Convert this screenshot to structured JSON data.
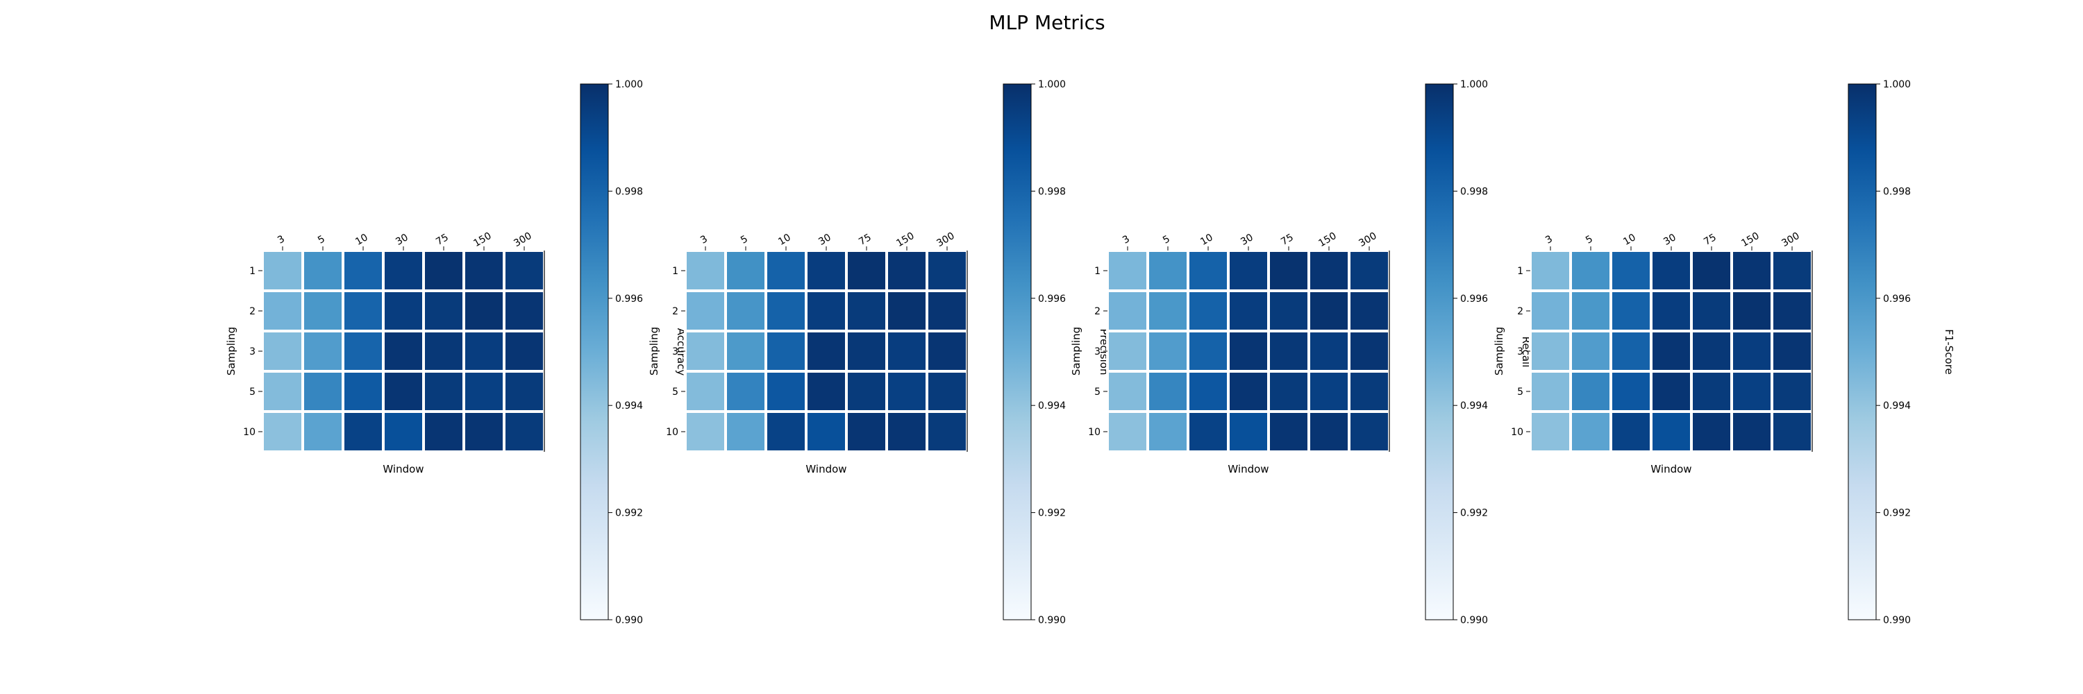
{
  "title": "MLP Metrics",
  "colormap": {
    "low": "#f7fbff",
    "high": "#08306b",
    "name": "Blues"
  },
  "chart_data": [
    {
      "type": "heatmap",
      "xlabel": "Window",
      "ylabel": "Sampling",
      "colorbar_label": "Accuracy",
      "x_categories": [
        "3",
        "5",
        "10",
        "30",
        "75",
        "150",
        "300"
      ],
      "y_categories": [
        "1",
        "2",
        "3",
        "5",
        "10"
      ],
      "clim": [
        0.99,
        1.0
      ],
      "colorbar_ticks": [
        "0.990",
        "0.992",
        "0.994",
        "0.996",
        "0.998",
        "1.000"
      ],
      "values": [
        [
          0.9945,
          0.9962,
          0.998,
          0.9995,
          0.9999,
          0.9998,
          0.9996
        ],
        [
          0.9948,
          0.996,
          0.998,
          0.9995,
          0.9996,
          0.9999,
          0.9998
        ],
        [
          0.9944,
          0.9958,
          0.998,
          0.9998,
          0.9997,
          0.9995,
          0.9998
        ],
        [
          0.9944,
          0.9967,
          0.9984,
          0.9998,
          0.9996,
          0.9994,
          0.9996
        ],
        [
          0.9942,
          0.9955,
          0.9993,
          0.9988,
          0.9998,
          0.9998,
          0.9996
        ]
      ]
    },
    {
      "type": "heatmap",
      "xlabel": "Window",
      "ylabel": "Sampling",
      "colorbar_label": "Precision",
      "x_categories": [
        "3",
        "5",
        "10",
        "30",
        "75",
        "150",
        "300"
      ],
      "y_categories": [
        "1",
        "2",
        "3",
        "5",
        "10"
      ],
      "clim": [
        0.99,
        1.0
      ],
      "colorbar_ticks": [
        "0.990",
        "0.992",
        "0.994",
        "0.996",
        "0.998",
        "1.000"
      ],
      "values": [
        [
          0.9945,
          0.9963,
          0.9981,
          0.9995,
          0.9999,
          0.9998,
          0.9996
        ],
        [
          0.9948,
          0.9961,
          0.9981,
          0.9995,
          0.9996,
          0.9999,
          0.9998
        ],
        [
          0.9944,
          0.9959,
          0.9981,
          0.9998,
          0.9997,
          0.9995,
          0.9998
        ],
        [
          0.9944,
          0.9968,
          0.9985,
          0.9998,
          0.9996,
          0.9994,
          0.9996
        ],
        [
          0.9942,
          0.9955,
          0.9993,
          0.9988,
          0.9998,
          0.9998,
          0.9996
        ]
      ]
    },
    {
      "type": "heatmap",
      "xlabel": "Window",
      "ylabel": "Sampling",
      "colorbar_label": "Recall",
      "x_categories": [
        "3",
        "5",
        "10",
        "30",
        "75",
        "150",
        "300"
      ],
      "y_categories": [
        "1",
        "2",
        "3",
        "5",
        "10"
      ],
      "clim": [
        0.99,
        1.0
      ],
      "colorbar_ticks": [
        "0.990",
        "0.992",
        "0.994",
        "0.996",
        "0.998",
        "1.000"
      ],
      "values": [
        [
          0.9946,
          0.9962,
          0.9981,
          0.9995,
          0.9999,
          0.9998,
          0.9996
        ],
        [
          0.9948,
          0.996,
          0.9981,
          0.9995,
          0.9996,
          0.9999,
          0.9998
        ],
        [
          0.9944,
          0.9958,
          0.9981,
          0.9998,
          0.9997,
          0.9995,
          0.9998
        ],
        [
          0.9944,
          0.9967,
          0.9985,
          0.9998,
          0.9996,
          0.9994,
          0.9996
        ],
        [
          0.9942,
          0.9955,
          0.9993,
          0.9988,
          0.9998,
          0.9998,
          0.9996
        ]
      ]
    },
    {
      "type": "heatmap",
      "xlabel": "Window",
      "ylabel": "Sampling",
      "colorbar_label": "F1-Score",
      "x_categories": [
        "3",
        "5",
        "10",
        "30",
        "75",
        "150",
        "300"
      ],
      "y_categories": [
        "1",
        "2",
        "3",
        "5",
        "10"
      ],
      "clim": [
        0.99,
        1.0
      ],
      "colorbar_ticks": [
        "0.990",
        "0.992",
        "0.994",
        "0.996",
        "0.998",
        "1.000"
      ],
      "values": [
        [
          0.9945,
          0.9962,
          0.9981,
          0.9995,
          0.9999,
          0.9998,
          0.9996
        ],
        [
          0.9948,
          0.996,
          0.9981,
          0.9995,
          0.9996,
          0.9999,
          0.9998
        ],
        [
          0.9944,
          0.9958,
          0.9981,
          0.9998,
          0.9997,
          0.9995,
          0.9998
        ],
        [
          0.9944,
          0.9967,
          0.9985,
          0.9998,
          0.9996,
          0.9994,
          0.9996
        ],
        [
          0.9942,
          0.9955,
          0.9993,
          0.9988,
          0.9998,
          0.9998,
          0.9996
        ]
      ]
    }
  ]
}
